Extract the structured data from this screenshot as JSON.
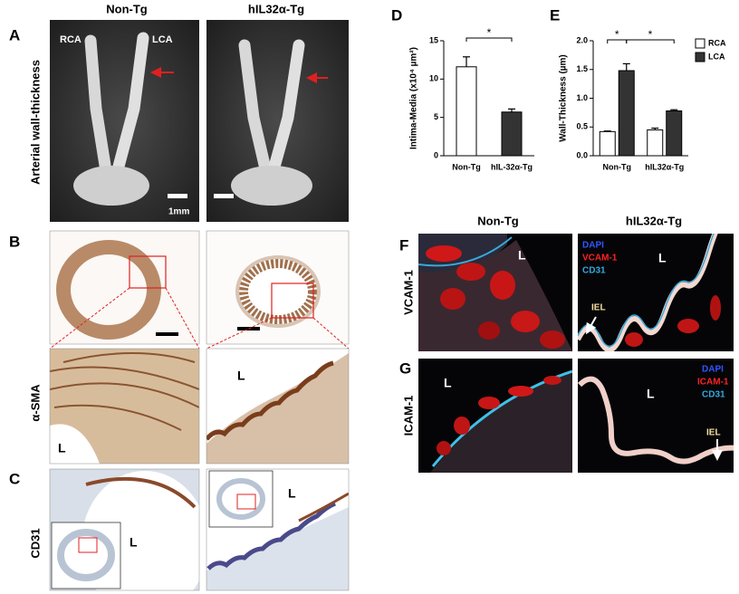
{
  "headers": {
    "non_tg": "Non-Tg",
    "tg": "hIL32α-Tg"
  },
  "panel_a": {
    "label": "A",
    "side_label": "Arterial wall-thickness",
    "rca": "RCA",
    "lca": "LCA",
    "scale": "1mm"
  },
  "panel_b": {
    "label": "B",
    "side_label": "α-SMA",
    "lumen": [
      "L",
      "L"
    ]
  },
  "panel_c": {
    "label": "C",
    "side_label": "CD31",
    "lumen": [
      "L",
      "L"
    ]
  },
  "panel_f": {
    "label": "F",
    "headers": [
      "Non-Tg",
      "hIL32α-Tg"
    ],
    "side_label": "VCAM-1",
    "legend": [
      "DAPI",
      "VCAM-1",
      "CD31"
    ],
    "iel": "IEL",
    "lumen": [
      "L",
      "L"
    ]
  },
  "panel_g": {
    "label": "G",
    "side_label": "ICAM-1",
    "legend": [
      "DAPI",
      "ICAM-1",
      "CD31"
    ],
    "iel": "IEL",
    "lumen": [
      "L",
      "L"
    ]
  },
  "chart_data": [
    {
      "type": "bar",
      "panel_label": "D",
      "ylabel": "Intima-Media (x10⁴ µm²)",
      "categories": [
        "Non-Tg",
        "hIL-32α-Tg"
      ],
      "values": [
        11.6,
        5.7
      ],
      "errors": [
        1.3,
        0.4
      ],
      "colors": [
        "#ffffff",
        "#333333"
      ],
      "ylim": [
        0,
        15
      ],
      "yticks": [
        0,
        5,
        10,
        15
      ],
      "annotations": [
        "*"
      ]
    },
    {
      "type": "bar",
      "panel_label": "E",
      "ylabel": "Wall-Thickness (µm)",
      "categories": [
        "Non-Tg",
        "hIL32α-Tg"
      ],
      "series": [
        {
          "name": "RCA",
          "color": "#ffffff",
          "values": [
            0.42,
            0.45
          ],
          "errors": [
            0.01,
            0.03
          ]
        },
        {
          "name": "LCA",
          "color": "#333333",
          "values": [
            1.48,
            0.78
          ],
          "errors": [
            0.12,
            0.02
          ]
        }
      ],
      "ylim": [
        0,
        2.0
      ],
      "yticks": [
        {
          "value": 0,
          "label": "0.0"
        },
        0.5,
        {
          "value": 1,
          "label": "1.0"
        },
        1.5,
        {
          "value": 2,
          "label": "2.0"
        }
      ],
      "annotations": [
        "*",
        "*"
      ],
      "legend": "right"
    }
  ]
}
